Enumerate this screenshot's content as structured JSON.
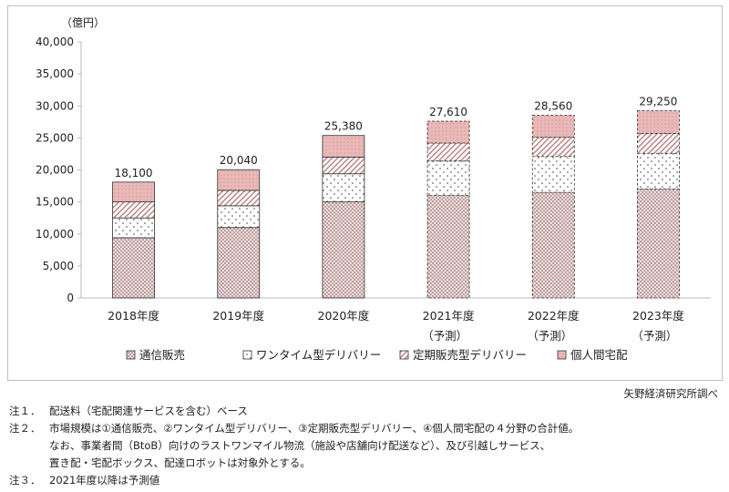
{
  "chart_data": {
    "type": "bar",
    "stacked": true,
    "unit_label": "（億円）",
    "categories": [
      {
        "year": "2018年度",
        "sub": ""
      },
      {
        "year": "2019年度",
        "sub": ""
      },
      {
        "year": "2020年度",
        "sub": ""
      },
      {
        "year": "2021年度",
        "sub": "（予測）"
      },
      {
        "year": "2022年度",
        "sub": "（予測）"
      },
      {
        "year": "2023年度",
        "sub": "（予測）"
      }
    ],
    "forecast": [
      false,
      false,
      false,
      true,
      true,
      true
    ],
    "totals": [
      18100,
      20040,
      25380,
      27610,
      28560,
      29250
    ],
    "total_labels": [
      "18,100",
      "20,040",
      "25,380",
      "27,610",
      "28,560",
      "29,250"
    ],
    "series": [
      {
        "name": "通信販売",
        "pattern": "crosshatch",
        "values": [
          9400,
          11000,
          15000,
          16000,
          16500,
          17000
        ]
      },
      {
        "name": "ワンタイム型デリバリー",
        "pattern": "dots",
        "values": [
          3100,
          3400,
          4400,
          5400,
          5600,
          5600
        ]
      },
      {
        "name": "定期販売型デリバリー",
        "pattern": "diagonal",
        "values": [
          2500,
          2400,
          2600,
          2800,
          3000,
          3100
        ]
      },
      {
        "name": "個人間宅配",
        "pattern": "pink",
        "values": [
          3100,
          3240,
          3380,
          3410,
          3460,
          3550
        ]
      }
    ],
    "ylim": [
      0,
      40000
    ],
    "yticks": [
      0,
      5000,
      10000,
      15000,
      20000,
      25000,
      30000,
      35000,
      40000
    ],
    "ytick_labels": [
      "0",
      "5,000",
      "10,000",
      "15,000",
      "20,000",
      "25,000",
      "30,000",
      "35,000",
      "40,000"
    ],
    "legend_position": "bottom",
    "grid": false
  },
  "source": "矢野経済研究所調べ",
  "notes": [
    {
      "label": "注１．",
      "text": "配送料（宅配関連サービスを含む）ベース"
    },
    {
      "label": "注２．",
      "text": "市場規模は①通信販売、②ワンタイム型デリバリー、③定期販売型デリバリー、④個人間宅配の４分野の合計値。"
    },
    {
      "label": "",
      "text": "なお、事業者間（BtoB）向けのラストワンマイル物流（施設や店舗向け配送など）、及び引越しサービス、"
    },
    {
      "label": "",
      "text": "置き配・宅配ボックス、配達ロボットは対象外とする。"
    },
    {
      "label": "注３．",
      "text": "2021年度以降は予測値"
    }
  ]
}
